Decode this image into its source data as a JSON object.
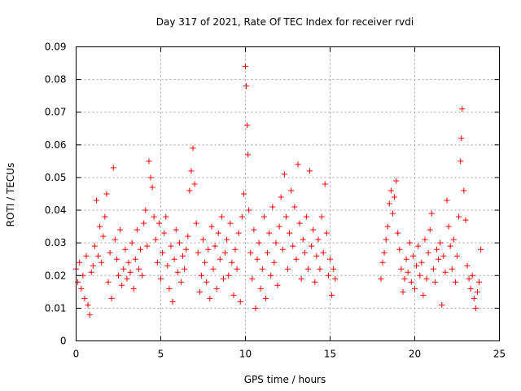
{
  "chart_data": {
    "type": "scatter",
    "title": "Day 317 of 2021, Rate Of TEC Index for receiver rvdi",
    "xlabel": "GPS time / hours",
    "ylabel": "ROTI / TECUs",
    "xlim": [
      0,
      25
    ],
    "ylim": [
      0,
      0.09
    ],
    "x_ticks": [
      "0",
      "5",
      "10",
      "15",
      "20",
      "25"
    ],
    "y_ticks": [
      "0",
      "0.01",
      "0.02",
      "0.03",
      "0.04",
      "0.05",
      "0.06",
      "0.07",
      "0.08",
      "0.09"
    ],
    "grid": true,
    "marker": "+",
    "color": "#ff0000",
    "series": [
      {
        "points": [
          [
            0.0,
            0.022
          ],
          [
            0.1,
            0.018
          ],
          [
            0.2,
            0.024
          ],
          [
            0.3,
            0.016
          ],
          [
            0.4,
            0.02
          ],
          [
            0.5,
            0.013
          ],
          [
            0.6,
            0.026
          ],
          [
            0.7,
            0.011
          ],
          [
            0.8,
            0.008
          ],
          [
            0.9,
            0.021
          ],
          [
            1.0,
            0.023
          ],
          [
            1.1,
            0.029
          ],
          [
            1.2,
            0.043
          ],
          [
            1.3,
            0.026
          ],
          [
            1.4,
            0.035
          ],
          [
            1.5,
            0.024
          ],
          [
            1.6,
            0.032
          ],
          [
            1.7,
            0.038
          ],
          [
            1.8,
            0.045
          ],
          [
            1.9,
            0.018
          ],
          [
            2.0,
            0.027
          ],
          [
            2.1,
            0.013
          ],
          [
            2.2,
            0.053
          ],
          [
            2.3,
            0.031
          ],
          [
            2.4,
            0.025
          ],
          [
            2.5,
            0.02
          ],
          [
            2.6,
            0.034
          ],
          [
            2.7,
            0.017
          ],
          [
            2.8,
            0.022
          ],
          [
            2.9,
            0.028
          ],
          [
            3.0,
            0.019
          ],
          [
            3.1,
            0.024
          ],
          [
            3.2,
            0.021
          ],
          [
            3.3,
            0.03
          ],
          [
            3.4,
            0.016
          ],
          [
            3.5,
            0.025
          ],
          [
            3.6,
            0.034
          ],
          [
            3.7,
            0.022
          ],
          [
            3.8,
            0.028
          ],
          [
            3.9,
            0.02
          ],
          [
            4.0,
            0.036
          ],
          [
            4.1,
            0.04
          ],
          [
            4.2,
            0.029
          ],
          [
            4.3,
            0.055
          ],
          [
            4.4,
            0.05
          ],
          [
            4.5,
            0.047
          ],
          [
            4.6,
            0.038
          ],
          [
            4.7,
            0.031
          ],
          [
            4.8,
            0.024
          ],
          [
            4.9,
            0.036
          ],
          [
            5.0,
            0.019
          ],
          [
            5.1,
            0.027
          ],
          [
            5.2,
            0.033
          ],
          [
            5.3,
            0.038
          ],
          [
            5.4,
            0.023
          ],
          [
            5.5,
            0.016
          ],
          [
            5.6,
            0.029
          ],
          [
            5.7,
            0.012
          ],
          [
            5.8,
            0.025
          ],
          [
            5.9,
            0.034
          ],
          [
            6.0,
            0.021
          ],
          [
            6.1,
            0.03
          ],
          [
            6.2,
            0.018
          ],
          [
            6.3,
            0.026
          ],
          [
            6.4,
            0.022
          ],
          [
            6.5,
            0.028
          ],
          [
            6.6,
            0.032
          ],
          [
            6.7,
            0.046
          ],
          [
            6.8,
            0.052
          ],
          [
            6.9,
            0.059
          ],
          [
            7.0,
            0.048
          ],
          [
            7.1,
            0.036
          ],
          [
            7.2,
            0.027
          ],
          [
            7.3,
            0.015
          ],
          [
            7.4,
            0.02
          ],
          [
            7.5,
            0.031
          ],
          [
            7.6,
            0.024
          ],
          [
            7.7,
            0.018
          ],
          [
            7.8,
            0.028
          ],
          [
            7.9,
            0.013
          ],
          [
            8.0,
            0.035
          ],
          [
            8.1,
            0.022
          ],
          [
            8.2,
            0.029
          ],
          [
            8.3,
            0.016
          ],
          [
            8.4,
            0.033
          ],
          [
            8.5,
            0.025
          ],
          [
            8.6,
            0.038
          ],
          [
            8.7,
            0.019
          ],
          [
            8.8,
            0.027
          ],
          [
            8.9,
            0.031
          ],
          [
            9.0,
            0.02
          ],
          [
            9.1,
            0.036
          ],
          [
            9.2,
            0.024
          ],
          [
            9.3,
            0.014
          ],
          [
            9.4,
            0.028
          ],
          [
            9.5,
            0.022
          ],
          [
            9.6,
            0.033
          ],
          [
            9.7,
            0.012
          ],
          [
            9.8,
            0.038
          ],
          [
            9.9,
            0.045
          ],
          [
            10.0,
            0.084
          ],
          [
            10.05,
            0.078
          ],
          [
            10.1,
            0.066
          ],
          [
            10.15,
            0.057
          ],
          [
            10.2,
            0.04
          ],
          [
            10.3,
            0.027
          ],
          [
            10.4,
            0.019
          ],
          [
            10.5,
            0.034
          ],
          [
            10.6,
            0.01
          ],
          [
            10.7,
            0.025
          ],
          [
            10.8,
            0.03
          ],
          [
            10.9,
            0.016
          ],
          [
            11.0,
            0.022
          ],
          [
            11.1,
            0.038
          ],
          [
            11.2,
            0.013
          ],
          [
            11.3,
            0.027
          ],
          [
            11.4,
            0.033
          ],
          [
            11.5,
            0.02
          ],
          [
            11.6,
            0.041
          ],
          [
            11.7,
            0.024
          ],
          [
            11.8,
            0.03
          ],
          [
            11.9,
            0.017
          ],
          [
            12.0,
            0.035
          ],
          [
            12.1,
            0.044
          ],
          [
            12.2,
            0.028
          ],
          [
            12.3,
            0.051
          ],
          [
            12.4,
            0.038
          ],
          [
            12.5,
            0.022
          ],
          [
            12.6,
            0.033
          ],
          [
            12.7,
            0.046
          ],
          [
            12.8,
            0.029
          ],
          [
            12.9,
            0.041
          ],
          [
            13.0,
            0.025
          ],
          [
            13.1,
            0.054
          ],
          [
            13.2,
            0.036
          ],
          [
            13.3,
            0.019
          ],
          [
            13.4,
            0.031
          ],
          [
            13.5,
            0.027
          ],
          [
            13.6,
            0.038
          ],
          [
            13.7,
            0.022
          ],
          [
            13.8,
            0.052
          ],
          [
            13.9,
            0.029
          ],
          [
            14.0,
            0.034
          ],
          [
            14.1,
            0.018
          ],
          [
            14.2,
            0.026
          ],
          [
            14.3,
            0.031
          ],
          [
            14.4,
            0.022
          ],
          [
            14.5,
            0.038
          ],
          [
            14.6,
            0.027
          ],
          [
            14.7,
            0.048
          ],
          [
            14.8,
            0.033
          ],
          [
            14.9,
            0.02
          ],
          [
            15.0,
            0.025
          ],
          [
            15.1,
            0.014
          ],
          [
            15.2,
            0.022
          ],
          [
            15.3,
            0.019
          ],
          [
            18.0,
            0.019
          ],
          [
            18.1,
            0.024
          ],
          [
            18.2,
            0.027
          ],
          [
            18.3,
            0.031
          ],
          [
            18.4,
            0.035
          ],
          [
            18.5,
            0.042
          ],
          [
            18.6,
            0.046
          ],
          [
            18.7,
            0.039
          ],
          [
            18.8,
            0.044
          ],
          [
            18.9,
            0.049
          ],
          [
            19.0,
            0.033
          ],
          [
            19.1,
            0.028
          ],
          [
            19.2,
            0.022
          ],
          [
            19.3,
            0.015
          ],
          [
            19.4,
            0.019
          ],
          [
            19.5,
            0.025
          ],
          [
            19.6,
            0.021
          ],
          [
            19.7,
            0.03
          ],
          [
            19.8,
            0.018
          ],
          [
            19.9,
            0.026
          ],
          [
            20.0,
            0.016
          ],
          [
            20.1,
            0.023
          ],
          [
            20.2,
            0.029
          ],
          [
            20.3,
            0.02
          ],
          [
            20.4,
            0.024
          ],
          [
            20.5,
            0.014
          ],
          [
            20.6,
            0.031
          ],
          [
            20.7,
            0.019
          ],
          [
            20.8,
            0.027
          ],
          [
            20.9,
            0.034
          ],
          [
            21.0,
            0.039
          ],
          [
            21.1,
            0.022
          ],
          [
            21.2,
            0.018
          ],
          [
            21.3,
            0.028
          ],
          [
            21.4,
            0.025
          ],
          [
            21.5,
            0.03
          ],
          [
            21.6,
            0.011
          ],
          [
            21.7,
            0.026
          ],
          [
            21.8,
            0.021
          ],
          [
            21.9,
            0.043
          ],
          [
            22.0,
            0.035
          ],
          [
            22.1,
            0.029
          ],
          [
            22.2,
            0.022
          ],
          [
            22.3,
            0.031
          ],
          [
            22.4,
            0.018
          ],
          [
            22.5,
            0.026
          ],
          [
            22.6,
            0.038
          ],
          [
            22.7,
            0.055
          ],
          [
            22.75,
            0.062
          ],
          [
            22.8,
            0.071
          ],
          [
            22.9,
            0.046
          ],
          [
            23.0,
            0.037
          ],
          [
            23.1,
            0.023
          ],
          [
            23.2,
            0.019
          ],
          [
            23.3,
            0.016
          ],
          [
            23.4,
            0.02
          ],
          [
            23.5,
            0.013
          ],
          [
            23.6,
            0.01
          ],
          [
            23.7,
            0.015
          ],
          [
            23.8,
            0.018
          ],
          [
            23.9,
            0.028
          ]
        ]
      }
    ]
  }
}
